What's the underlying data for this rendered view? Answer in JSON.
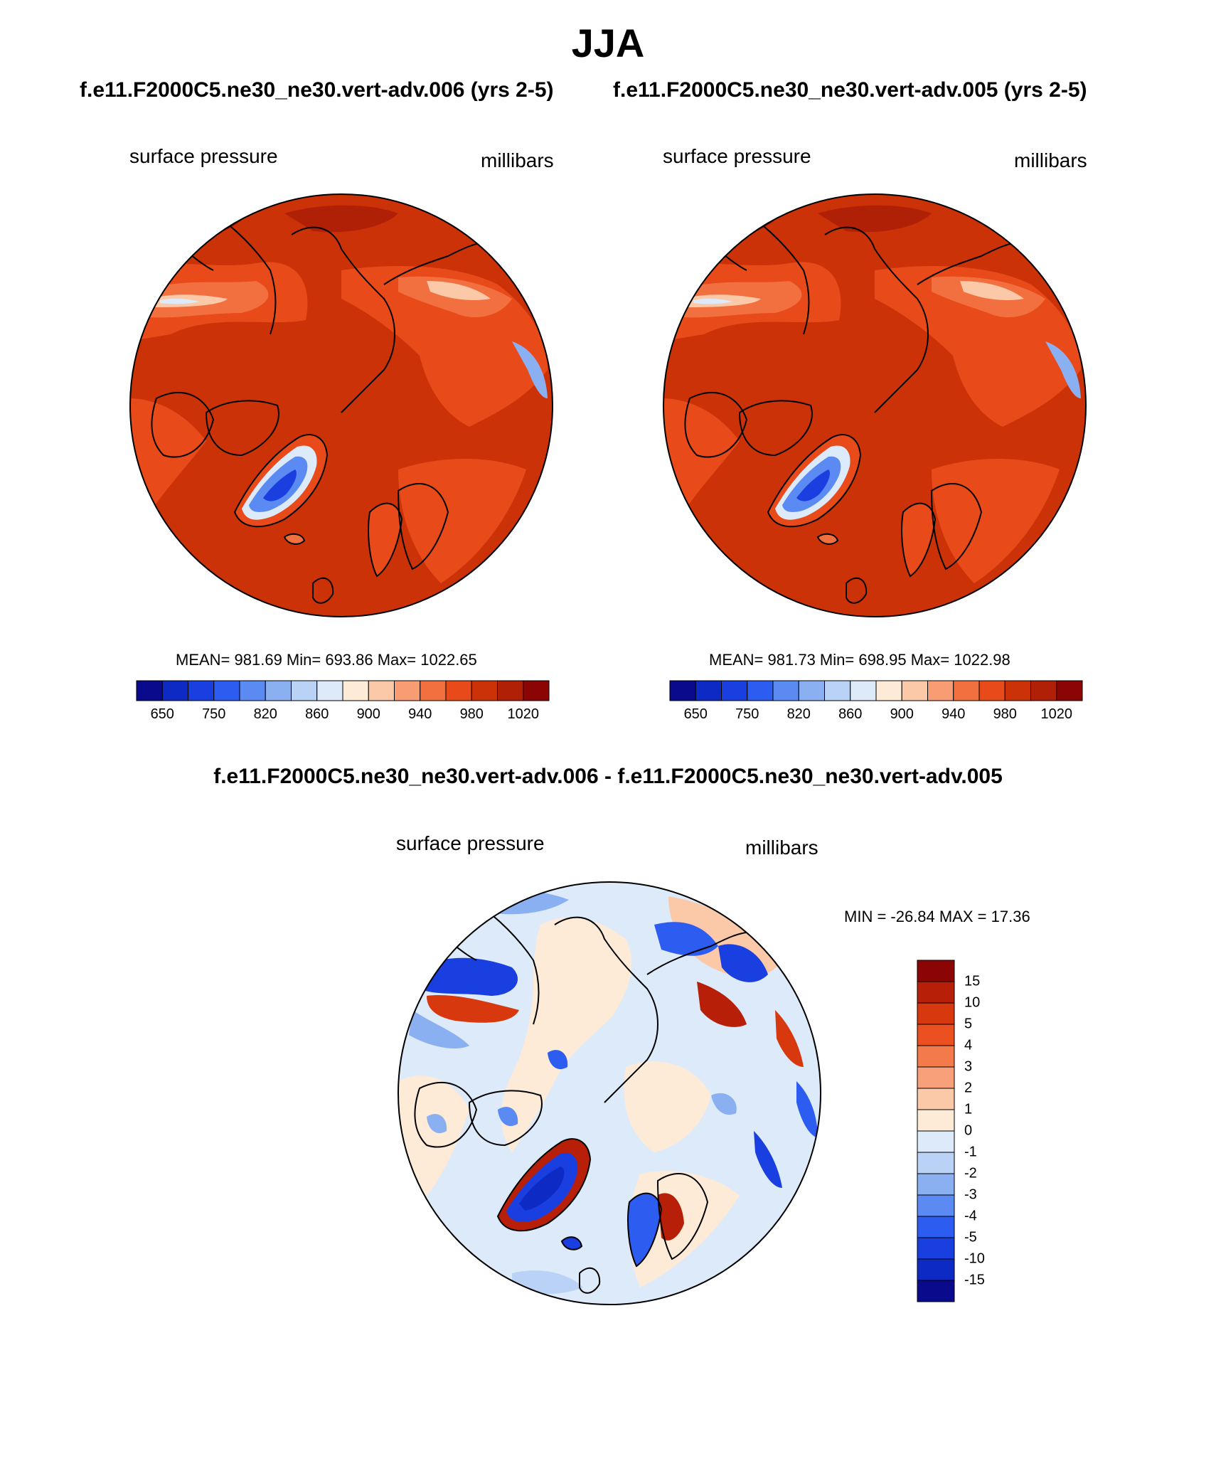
{
  "page": {
    "title": "JJA",
    "diff_title": "f.e11.F2000C5.ne30_ne30.vert-adv.006 - f.e11.F2000C5.ne30_ne30.vert-adv.005"
  },
  "chart_data": [
    {
      "type": "heatmap",
      "projection": "north-polar-stereographic",
      "title": "f.e11.F2000C5.ne30_ne30.vert-adv.006 (yrs 2-5)",
      "left_label": "surface pressure",
      "right_label": "millibars",
      "stats": {
        "mean": "981.69",
        "min": "693.86",
        "max": "1022.65",
        "text": "MEAN= 981.69  Min= 693.86  Max= 1022.65"
      },
      "colorbar": {
        "orientation": "horizontal",
        "tick_labels": [
          "650",
          "750",
          "820",
          "860",
          "900",
          "940",
          "980",
          "1020"
        ],
        "colors": [
          "#0a0a8c",
          "#0d2bc4",
          "#1a3fe0",
          "#2c5cf0",
          "#5a8af2",
          "#8bb0f2",
          "#b9d2f5",
          "#ddeafa",
          "#fdebd8",
          "#fbc9a8",
          "#f89c74",
          "#f2703f",
          "#e84a19",
          "#cc3208",
          "#b02006",
          "#8a0504"
        ]
      }
    },
    {
      "type": "heatmap",
      "projection": "north-polar-stereographic",
      "title": "f.e11.F2000C5.ne30_ne30.vert-adv.005 (yrs 2-5)",
      "left_label": "surface pressure",
      "right_label": "millibars",
      "stats": {
        "mean": "981.73",
        "min": "698.95",
        "max": "1022.98",
        "text": "MEAN= 981.73  Min= 698.95  Max= 1022.98"
      },
      "colorbar": {
        "orientation": "horizontal",
        "tick_labels": [
          "650",
          "750",
          "820",
          "860",
          "900",
          "940",
          "980",
          "1020"
        ],
        "colors": [
          "#0a0a8c",
          "#0d2bc4",
          "#1a3fe0",
          "#2c5cf0",
          "#5a8af2",
          "#8bb0f2",
          "#b9d2f5",
          "#ddeafa",
          "#fdebd8",
          "#fbc9a8",
          "#f89c74",
          "#f2703f",
          "#e84a19",
          "#cc3208",
          "#b02006",
          "#8a0504"
        ]
      }
    },
    {
      "type": "heatmap",
      "projection": "north-polar-stereographic",
      "title": "f.e11.F2000C5.ne30_ne30.vert-adv.006 - f.e11.F2000C5.ne30_ne30.vert-adv.005",
      "left_label": "surface pressure",
      "right_label": "millibars",
      "stats": {
        "min": "-26.84",
        "max": "17.36",
        "text": "MIN = -26.84 MAX =  17.36"
      },
      "colorbar": {
        "orientation": "vertical",
        "tick_labels": [
          "15",
          "10",
          "5",
          "4",
          "3",
          "2",
          "1",
          "0",
          "-1",
          "-2",
          "-3",
          "-4",
          "-5",
          "-10",
          "-15"
        ],
        "colors": [
          "#8a0504",
          "#b81f08",
          "#d8380d",
          "#ea5020",
          "#f37a4a",
          "#f7a07a",
          "#fbc9a8",
          "#fdebd8",
          "#ddeafa",
          "#b9d2f5",
          "#8bb0f2",
          "#5a8af2",
          "#2c5cf0",
          "#1a3fe0",
          "#0d2bc4",
          "#0a0a8c"
        ]
      }
    }
  ]
}
